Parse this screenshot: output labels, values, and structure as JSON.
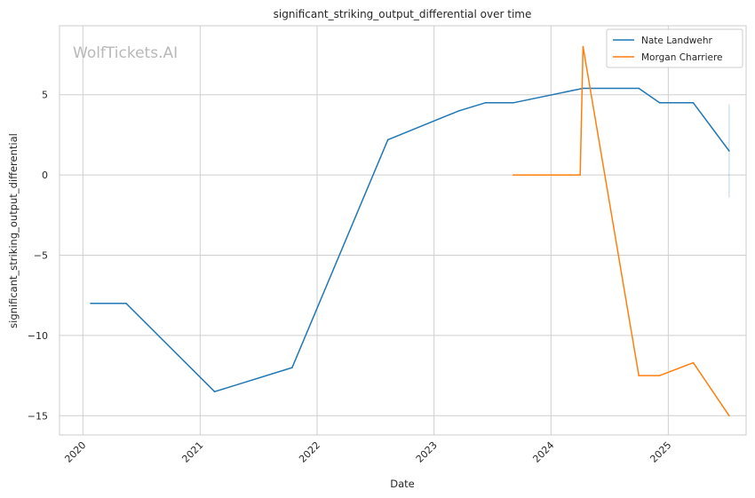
{
  "chart_data": {
    "type": "line",
    "title": "significant_striking_output_differential over time",
    "xlabel": "Date",
    "ylabel": "significant_striking_output_differential",
    "watermark": "WolfTickets.AI",
    "x_ticks": [
      "2020",
      "2021",
      "2022",
      "2023",
      "2024",
      "2025"
    ],
    "y_ticks": [
      5,
      0,
      -5,
      -10,
      -15
    ],
    "y_tick_labels": [
      "5",
      "0",
      "−5",
      "−10",
      "−15"
    ],
    "xlim": [
      "2019-10-20",
      "2025-09-01"
    ],
    "ylim": [
      -16.2,
      9.3
    ],
    "grid": true,
    "legend_position": "top-right",
    "series": [
      {
        "name": "Nate Landwehr",
        "color": "#1f77b4",
        "points": [
          {
            "x": "2020-01-25",
            "y": -8.0
          },
          {
            "x": "2020-05-15",
            "y": -8.0
          },
          {
            "x": "2021-02-15",
            "y": -13.5
          },
          {
            "x": "2021-10-15",
            "y": -12.0
          },
          {
            "x": "2022-08-10",
            "y": 2.2
          },
          {
            "x": "2023-03-20",
            "y": 4.0
          },
          {
            "x": "2023-06-10",
            "y": 4.5
          },
          {
            "x": "2023-09-05",
            "y": 4.5
          },
          {
            "x": "2024-04-10",
            "y": 5.4
          },
          {
            "x": "2024-10-01",
            "y": 5.4
          },
          {
            "x": "2024-12-05",
            "y": 4.5
          },
          {
            "x": "2025-03-20",
            "y": 4.5
          },
          {
            "x": "2025-07-10",
            "y": 1.5
          }
        ],
        "error_bar": {
          "x": "2025-07-10",
          "low": -1.4,
          "high": 4.4
        }
      },
      {
        "name": "Morgan Charriere",
        "color": "#ff7f0e",
        "points": [
          {
            "x": "2023-09-05",
            "y": 0.0
          },
          {
            "x": "2024-04-01",
            "y": 0.0
          },
          {
            "x": "2024-04-10",
            "y": 8.0
          },
          {
            "x": "2024-10-01",
            "y": -12.5
          },
          {
            "x": "2024-12-05",
            "y": -12.5
          },
          {
            "x": "2025-03-20",
            "y": -11.7
          },
          {
            "x": "2025-07-10",
            "y": -15.0
          }
        ]
      }
    ]
  }
}
